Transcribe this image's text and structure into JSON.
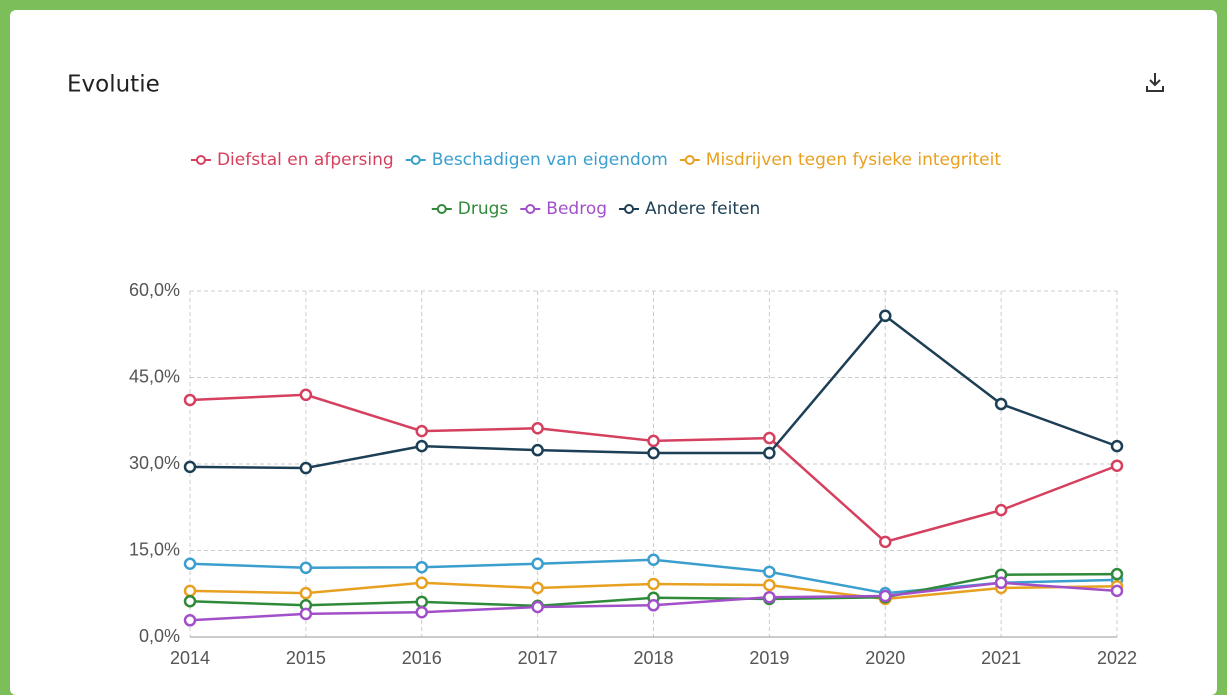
{
  "chart_data": {
    "type": "line",
    "title": "Evolutie",
    "categories": [
      "2014",
      "2015",
      "2016",
      "2017",
      "2018",
      "2019",
      "2020",
      "2021",
      "2022"
    ],
    "series": [
      {
        "name": "Diefstal en afpersing",
        "color": "#d6405f",
        "values": [
          41.1,
          42.0,
          35.7,
          36.2,
          34.0,
          34.5,
          16.5,
          22.0,
          29.7
        ]
      },
      {
        "name": "Beschadigen van eigendom",
        "color": "#3a9fcf",
        "values": [
          12.7,
          12.0,
          12.1,
          12.7,
          13.4,
          11.3,
          7.6,
          9.4,
          9.9
        ]
      },
      {
        "name": "Misdrijven tegen fysieke integriteit",
        "color": "#e8a020",
        "values": [
          8.0,
          7.6,
          9.4,
          8.5,
          9.2,
          9.0,
          6.6,
          8.5,
          8.8
        ]
      },
      {
        "name": "Drugs",
        "color": "#2f8a3a",
        "values": [
          6.2,
          5.5,
          6.1,
          5.4,
          6.8,
          6.6,
          6.9,
          10.8,
          10.9
        ]
      },
      {
        "name": "Bedrog",
        "color": "#a250c9",
        "values": [
          2.9,
          4.0,
          4.3,
          5.2,
          5.5,
          6.9,
          7.1,
          9.4,
          8.0
        ]
      },
      {
        "name": "Andere feiten",
        "color": "#1c3f55",
        "values": [
          29.5,
          29.3,
          33.1,
          32.4,
          31.9,
          31.9,
          55.7,
          40.4,
          33.1
        ]
      }
    ],
    "ylim": [
      0,
      60
    ],
    "yticks": [
      {
        "value": 0,
        "label": "0,0%"
      },
      {
        "value": 15,
        "label": "15,0%"
      },
      {
        "value": 30,
        "label": "30,0%"
      },
      {
        "value": 45,
        "label": "45,0%"
      },
      {
        "value": 60,
        "label": "60,0%"
      }
    ],
    "grid": true,
    "legend": "top"
  }
}
